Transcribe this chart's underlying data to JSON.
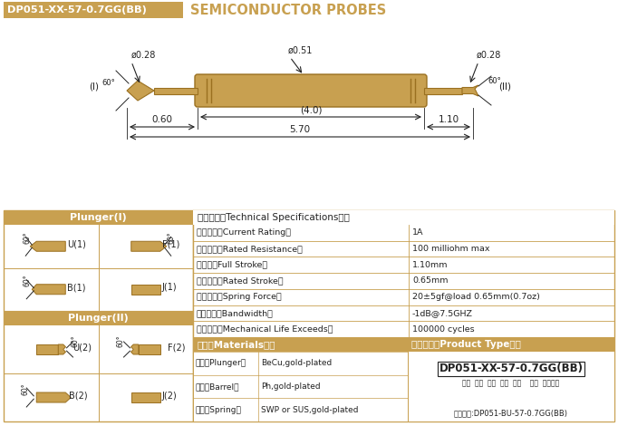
{
  "title_box_text": "DP051-XX-57-0.7GG(BB)",
  "title_subtitle": "SEMICONDUCTOR PROBES",
  "gold": "#C8A050",
  "dark_gold": "#9A7020",
  "white": "#FFFFFF",
  "black": "#222222",
  "border": "#C8A050",
  "bg": "#FFFFFF",
  "specs_title": "技术要求（Technical Specifications）：",
  "specs": [
    [
      "额定电流（Current Rating）",
      "1A"
    ],
    [
      "额定电阻（Rated Resistance）",
      "100 milliohm max"
    ],
    [
      "满行程（Full Stroke）",
      "1.10mm"
    ],
    [
      "额定行程（Rated Stroke）",
      "0.65mm"
    ],
    [
      "额定弹力（Spring Force）",
      "20±5gf@load 0.65mm(0.7oz)"
    ],
    [
      "频率带宽（Bandwidth）",
      "-1dB@7.5GHZ"
    ],
    [
      "测试寿命（Mechanical Life Exceeds）",
      "100000 cycles"
    ]
  ],
  "materials_title": "材质（Materials）：",
  "materials": [
    [
      "针头（Plunger）",
      "BeCu,gold-plated"
    ],
    [
      "针管（Barrel）",
      "Ph,gold-plated"
    ],
    [
      "弹簧（Spring）",
      "SWP or SUS,gold-plated"
    ]
  ],
  "product_type_title": "成品型号（Product Type）：",
  "product_type_code": "DP051-XX-57-0.7GG(BB)",
  "product_type_labels": "系列  规格  头型  总长  弹力    镀金  针头树脂",
  "product_order": "订购举例:DP051-BU-57-0.7GG(BB)",
  "plunger1_title": "Plunger(I)",
  "plunger2_title": "Plunger(II)",
  "d_left": "ø0.28",
  "d_center": "ø0.51",
  "d_right": "ø0.28",
  "len_center": "(4.0)",
  "len_left": "0.60",
  "len_right": "1.10",
  "len_total": "5.70",
  "label_I": "(I)",
  "label_II": "(II)"
}
